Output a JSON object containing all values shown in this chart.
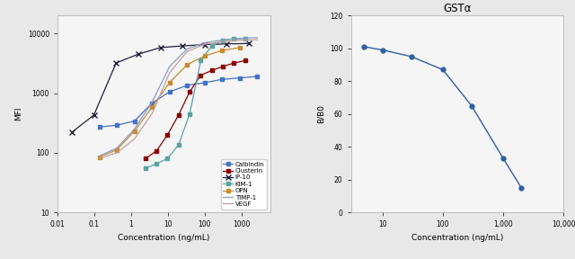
{
  "left": {
    "xlabel": "Concentration (ng/mL)",
    "ylabel": "MFI",
    "xlim": [
      0.01,
      6000
    ],
    "ylim": [
      10,
      20000
    ],
    "series": {
      "Calbindin": {
        "color": "#4472C4",
        "marker": "s",
        "markersize": 3,
        "x": [
          0.137,
          0.411,
          1.23,
          3.7,
          11.1,
          33.3,
          100,
          300,
          900,
          2700
        ],
        "y": [
          270,
          290,
          340,
          680,
          1050,
          1350,
          1500,
          1700,
          1800,
          1900
        ]
      },
      "Clusterin": {
        "color": "#8B0000",
        "marker": "s",
        "markersize": 3,
        "x": [
          2.44,
          4.88,
          9.77,
          19.5,
          39.1,
          78.1,
          156,
          313,
          625,
          1250
        ],
        "y": [
          80,
          107,
          200,
          430,
          1050,
          2000,
          2400,
          2800,
          3200,
          3500
        ]
      },
      "IP-10": {
        "color": "#1F1F3C",
        "marker": "x",
        "markersize": 4,
        "x": [
          0.0244,
          0.0977,
          0.391,
          1.56,
          6.25,
          25.0,
          100,
          400,
          1600
        ],
        "y": [
          220,
          430,
          3200,
          4500,
          5800,
          6200,
          6500,
          6700,
          6800
        ]
      },
      "KIM-1": {
        "color": "#5BA3A0",
        "marker": "s",
        "markersize": 3,
        "x": [
          2.44,
          4.88,
          9.77,
          19.5,
          39.1,
          78.1,
          156,
          313,
          625,
          1250
        ],
        "y": [
          55,
          65,
          80,
          135,
          450,
          3500,
          6200,
          7700,
          8100,
          8300
        ]
      },
      "OPN": {
        "color": "#C68B30",
        "marker": "s",
        "markersize": 3,
        "x": [
          0.137,
          0.411,
          1.23,
          3.7,
          11.1,
          33.3,
          100,
          300,
          900
        ],
        "y": [
          85,
          112,
          230,
          580,
          1500,
          3000,
          4200,
          5200,
          5800
        ]
      },
      "TIMP-1": {
        "color": "#8B9DC3",
        "marker": "",
        "markersize": 0,
        "x": [
          0.137,
          0.411,
          1.23,
          3.7,
          11.1,
          33.3,
          100,
          300,
          900,
          2700
        ],
        "y": [
          88,
          120,
          250,
          700,
          2800,
          5500,
          7000,
          7800,
          8300,
          8500
        ]
      },
      "VEGF": {
        "color": "#C0A0A0",
        "marker": "",
        "markersize": 0,
        "x": [
          0.137,
          0.411,
          1.23,
          3.7,
          11.1,
          33.3,
          100,
          300,
          900,
          2700
        ],
        "y": [
          80,
          100,
          170,
          450,
          2200,
          5000,
          6600,
          7300,
          7700,
          7900
        ]
      }
    }
  },
  "right": {
    "title": "GSTα",
    "xlabel": "Concentration (ng/mL)",
    "ylabel": "B/B0",
    "xlim": [
      3,
      10000
    ],
    "ylim": [
      0,
      120
    ],
    "color": "#2E5FA3",
    "x": [
      5,
      10,
      30,
      100,
      300,
      1000,
      2000
    ],
    "y": [
      101,
      99,
      95,
      87,
      65,
      33,
      15
    ]
  },
  "bg_color": "#e8e8e8",
  "plot_bg": "#f5f5f5"
}
